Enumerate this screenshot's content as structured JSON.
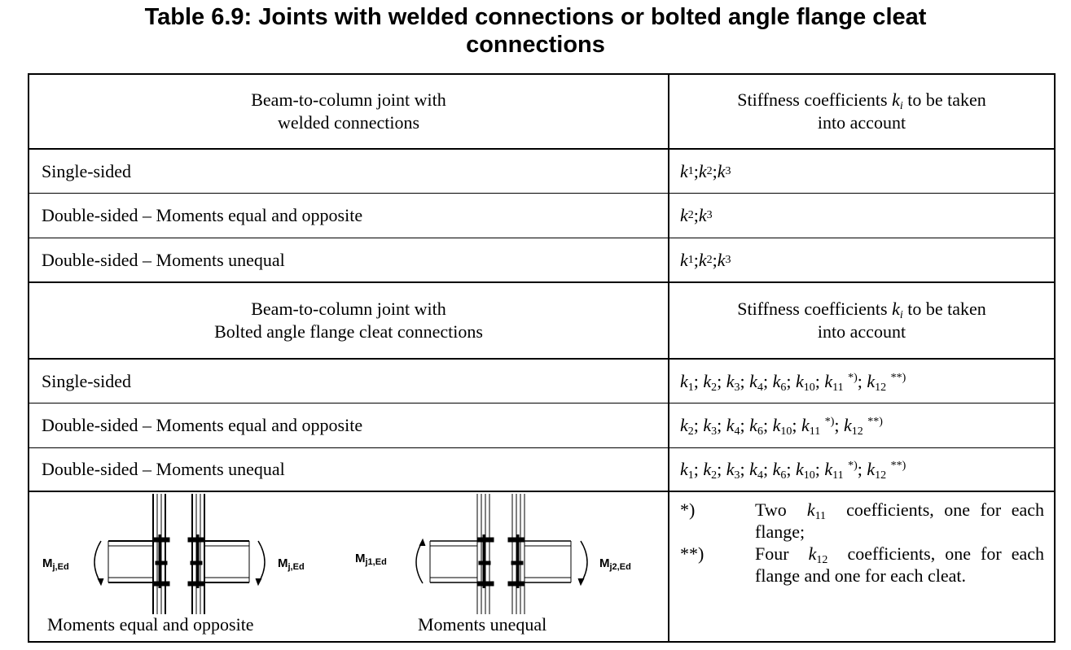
{
  "title": {
    "line1": "Table 6.9: Joints with welded connections or bolted angle flange cleat",
    "line2": "connections"
  },
  "header_welded": {
    "col1_line1": "Beam-to-column joint with",
    "col1_line2": "welded connections",
    "col2_pre": "Stiffness coefficients",
    "col2_symbol": "k",
    "col2_sub": "i",
    "col2_post": "to be taken",
    "col2_line2": "into account"
  },
  "rows_welded": [
    {
      "config": "Single-sided",
      "coeffs": "k1; k2; k3"
    },
    {
      "config": "Double-sided – Moments equal and opposite",
      "coeffs": "k2; k3"
    },
    {
      "config": "Double-sided – Moments unequal",
      "coeffs": "k1; k2; k3"
    }
  ],
  "header_bolted": {
    "col1_line1": "Beam-to-column joint with",
    "col1_line2": "Bolted angle flange cleat connections",
    "col2_pre": "Stiffness coefficients",
    "col2_symbol": "k",
    "col2_sub": "i",
    "col2_post": "to be taken",
    "col2_line2": "into account"
  },
  "rows_bolted": [
    {
      "config": "Single-sided",
      "coeffs": "k1; k2; k3; k4; k6; k10; k11 *); k12 **)"
    },
    {
      "config": "Double-sided – Moments equal and opposite",
      "coeffs": "k2; k3; k4; k6; k10; k11 *); k12 **)"
    },
    {
      "config": "Double-sided – Moments unequal",
      "coeffs": "k1; k2; k3; k4; k6; k10; k11 *); k12 **)"
    }
  ],
  "figure": {
    "left_label_moment": "M",
    "left_label_sub": "j,Ed",
    "right_label_moment": "M",
    "right_label_sub": "j,Ed",
    "unequal_left_moment": "M",
    "unequal_left_sub": "j1,Ed",
    "unequal_right_moment": "M",
    "unequal_right_sub": "j2,Ed",
    "caption_equal": "Moments equal and opposite",
    "caption_unequal": "Moments unequal"
  },
  "notes": [
    {
      "mark": "*)",
      "pre": "Two",
      "symbol": "k",
      "sub": "11",
      "text": "coefficients, one for each flange;"
    },
    {
      "mark": "**)",
      "pre": "Four",
      "symbol": "k",
      "sub": "12",
      "text": "coefficients, one for each flange and one for each cleat."
    }
  ]
}
